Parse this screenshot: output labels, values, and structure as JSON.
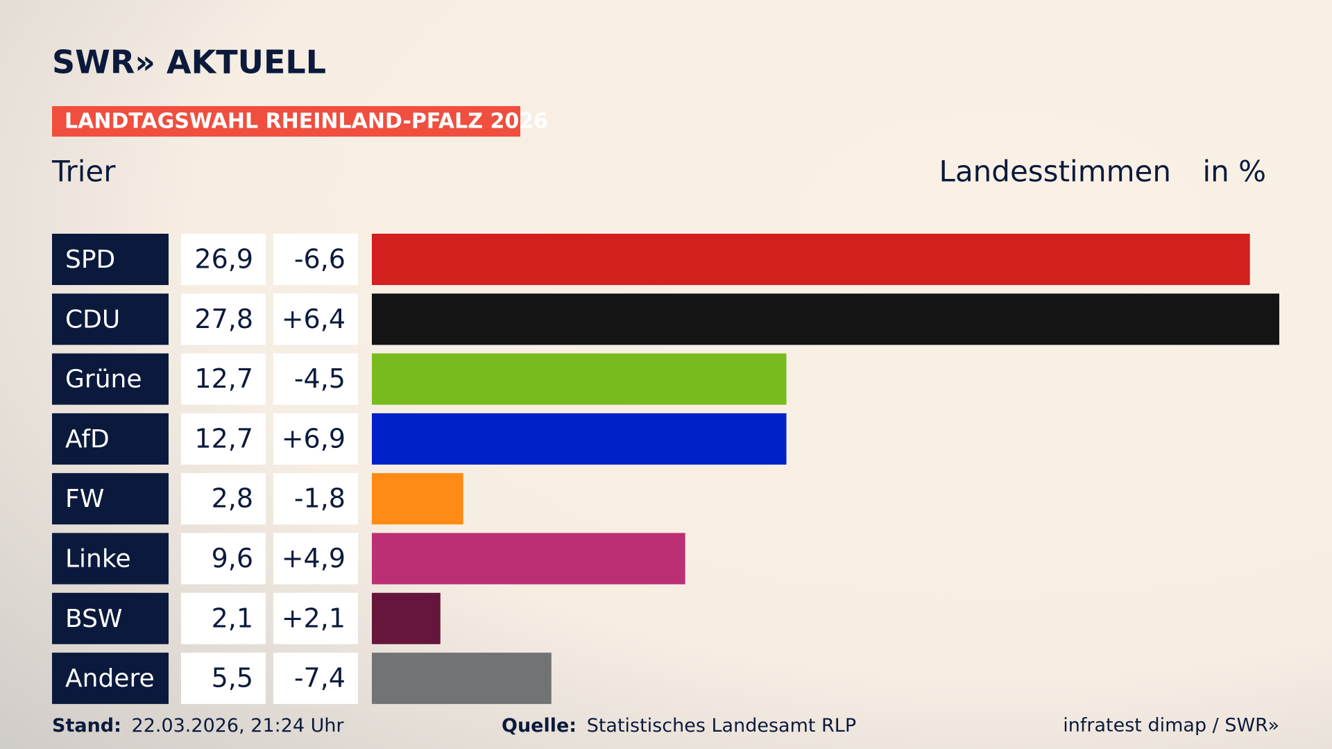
{
  "header": {
    "logo": "SWR» AKTUELL"
  },
  "chart_data": {
    "type": "bar",
    "title": "LANDTAGSWAHL RHEINLAND-PFALZ 2026",
    "subtitle": "Trier",
    "measure": "Landesstimmen",
    "unit": "in %",
    "categories": [
      "SPD",
      "CDU",
      "Grüne",
      "AfD",
      "FW",
      "Linke",
      "BSW",
      "Andere"
    ],
    "values": [
      26.9,
      27.8,
      12.7,
      12.7,
      2.8,
      9.6,
      2.1,
      5.5
    ],
    "value_labels": [
      "26,9",
      "27,8",
      "12,7",
      "12,7",
      "2,8",
      "9,6",
      "2,1",
      "5,5"
    ],
    "changes": [
      -6.6,
      6.4,
      -4.5,
      6.9,
      -1.8,
      4.9,
      2.1,
      -7.4
    ],
    "change_labels": [
      "-6,6",
      "+6,4",
      "-4,5",
      "+6,9",
      "-1,8",
      "+4,9",
      "+2,1",
      "-7,4"
    ],
    "colors": [
      "#d41f1f",
      "#141414",
      "#78bb1e",
      "#0021c9",
      "#ff8a14",
      "#bb3075",
      "#66163d",
      "#727374"
    ],
    "xlim": [
      0,
      27.8
    ]
  },
  "footer": {
    "stand_label": "Stand:",
    "stand": "22.03.2026, 21:24 Uhr",
    "source_label": "Quelle:",
    "source": "Statistisches Landesamt RLP",
    "credit": "infratest dimap / SWR»"
  }
}
